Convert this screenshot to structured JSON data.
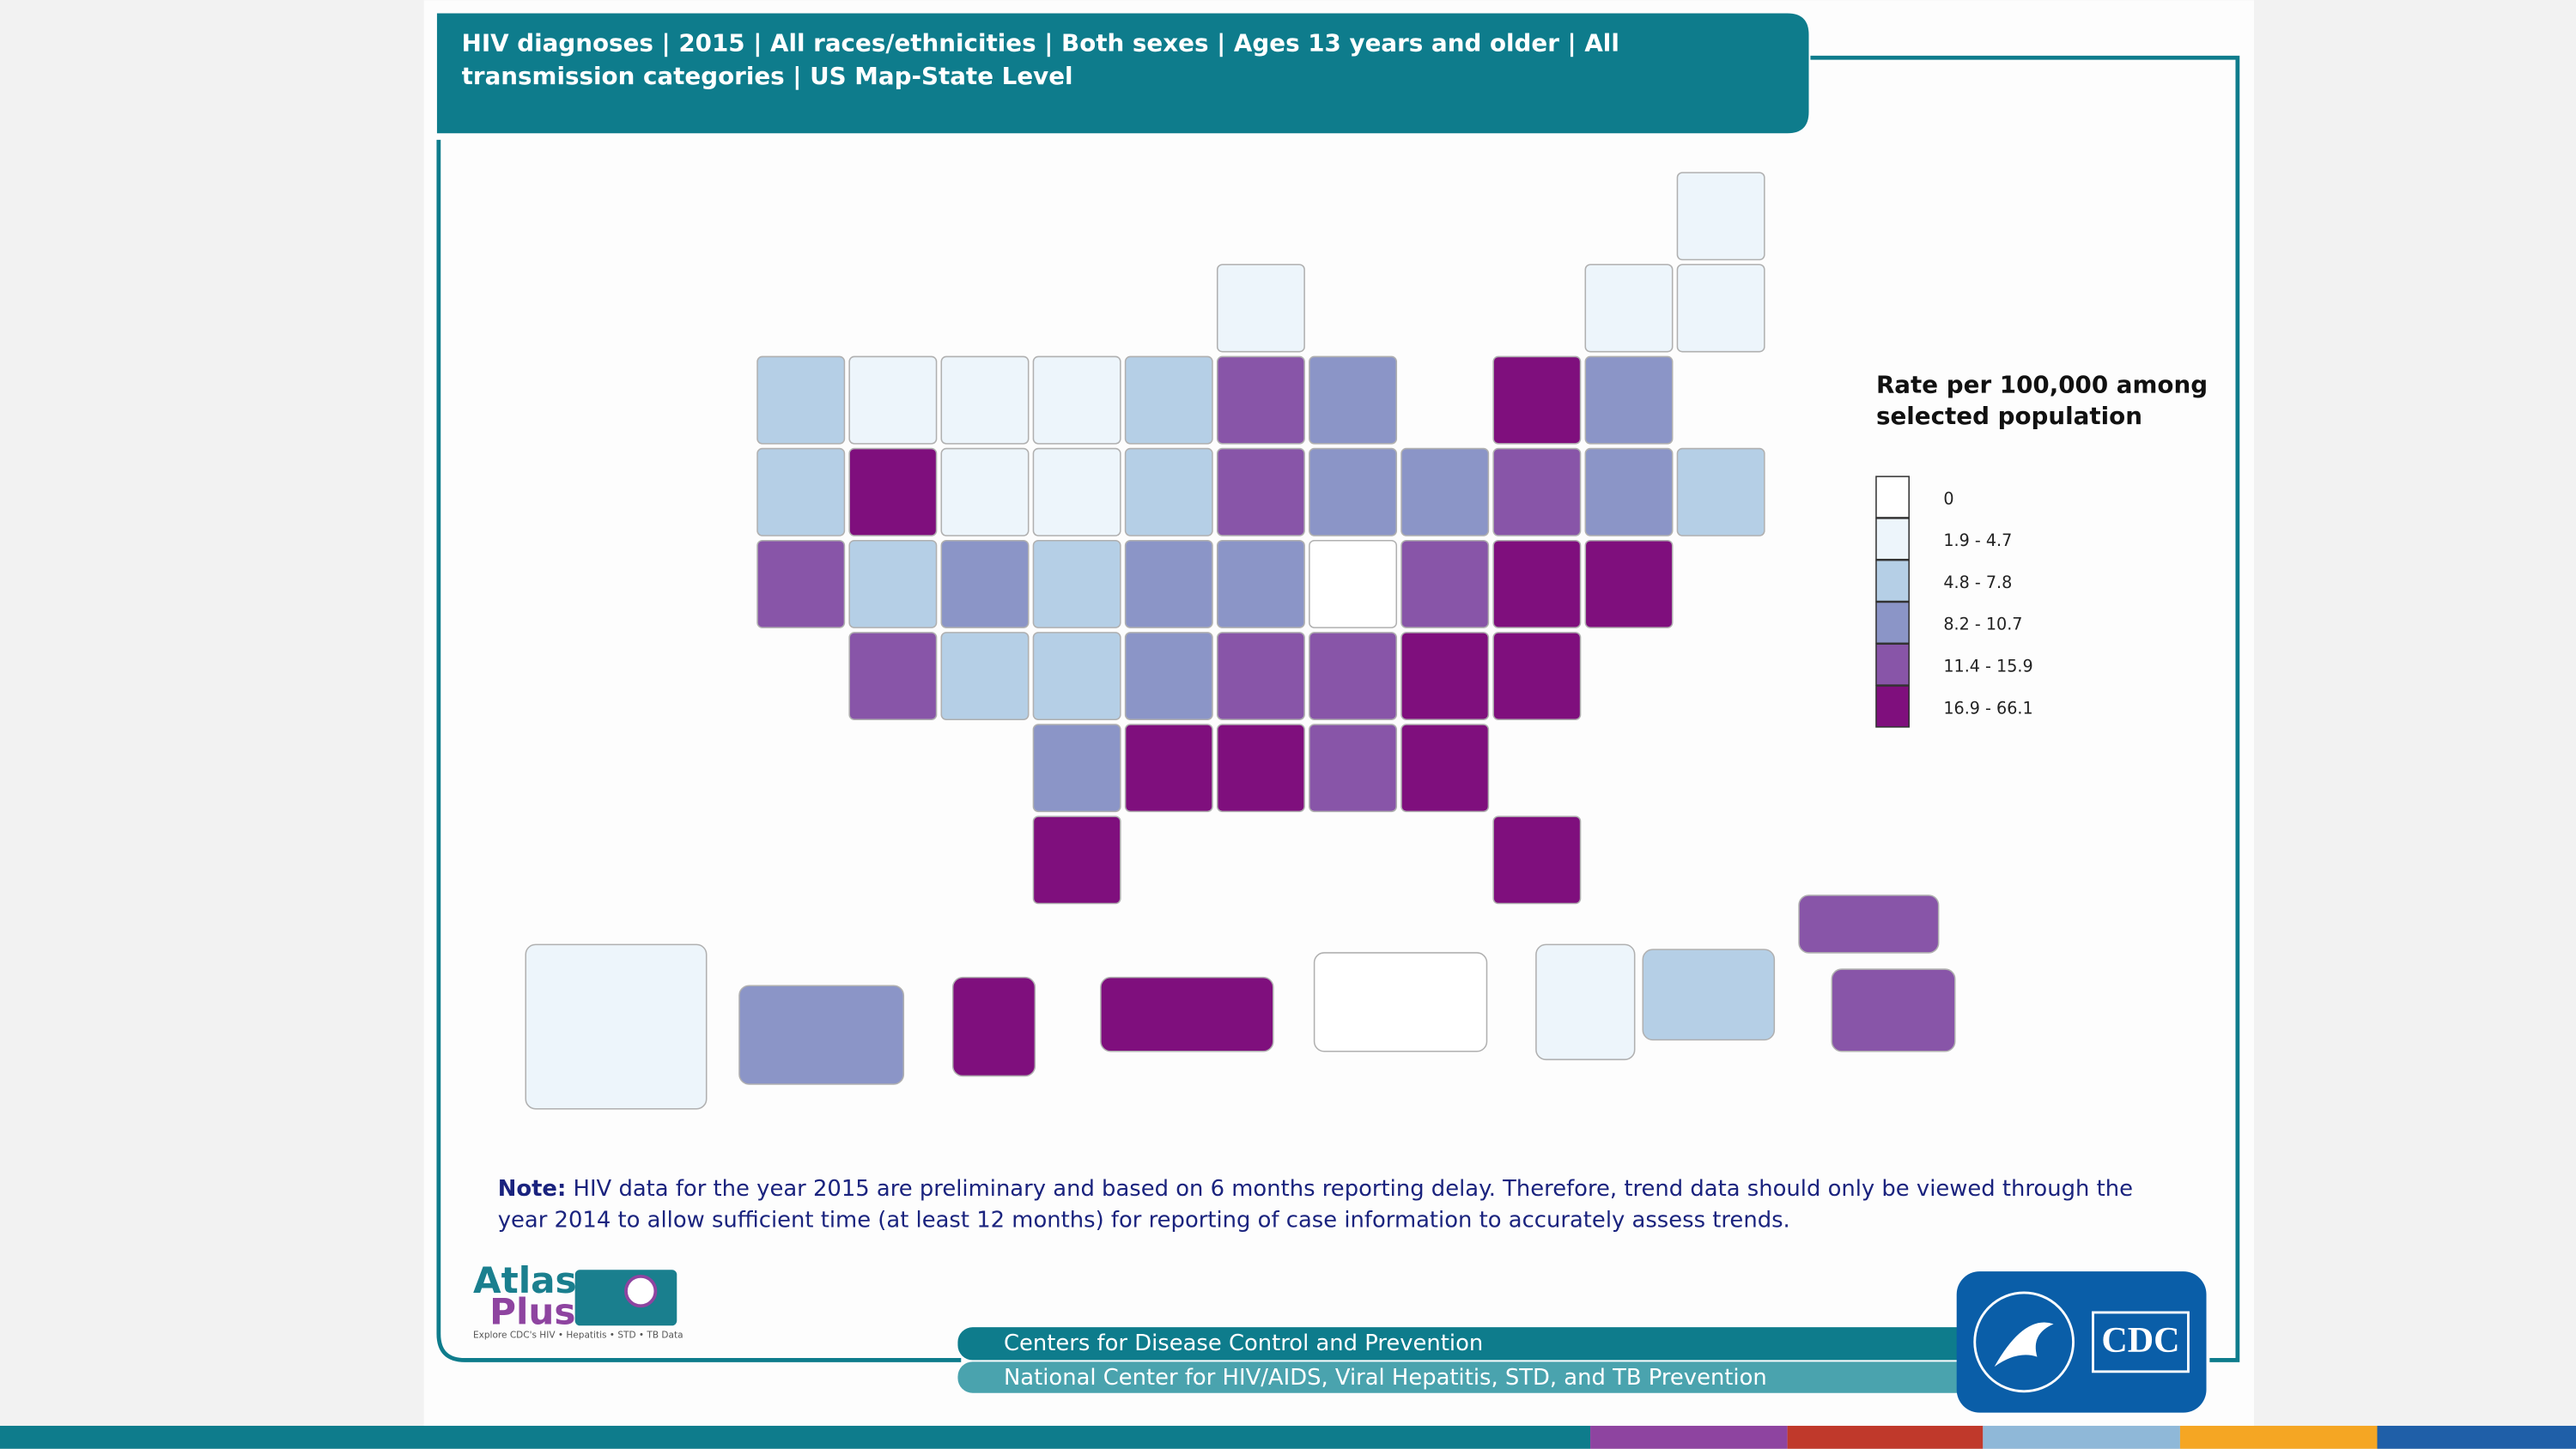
{
  "header": {
    "title": "HIV diagnoses | 2015 | All races/ethnicities | Both sexes | Ages 13 years and older | All transmission categories | US Map-State Level"
  },
  "legend": {
    "title": "Rate per 100,000 among selected population",
    "items": [
      {
        "label": "0",
        "color": "#ffffff"
      },
      {
        "label": "1.9 - 4.7",
        "color": "#edf5fb"
      },
      {
        "label": "4.8 - 7.8",
        "color": "#b5cfe6"
      },
      {
        "label": "8.2 - 10.7",
        "color": "#8b95c7"
      },
      {
        "label": "11.4 - 15.9",
        "color": "#8855a8"
      },
      {
        "label": "16.9 - 66.1",
        "color": "#7f0f7d"
      }
    ]
  },
  "note": {
    "label": "Note:",
    "text": "HIV data for the year 2015 are preliminary and based on 6 months reporting delay. Therefore, trend data should only be viewed through the year 2014 to allow sufficient time (at least 12 months) for reporting of case information to accurately assess trends."
  },
  "logo": {
    "line1": "Atlas",
    "line2": "Plus",
    "tagline": "Explore CDC's HIV • Hepatitis • STD • TB Data",
    "agency": "CDC"
  },
  "footer": {
    "line1": "Centers for Disease Control and Prevention",
    "line2": "National Center for HIV/AIDS, Viral Hepatitis, STD, and TB Prevention"
  }
}
